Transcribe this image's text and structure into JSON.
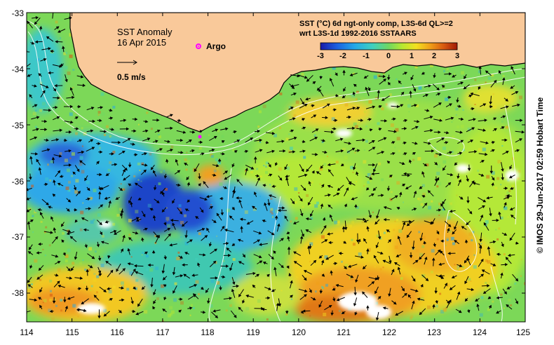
{
  "title_block": {
    "line1": "SST Anomaly",
    "line2": "16 Apr 2015"
  },
  "argo_legend": {
    "label": "Argo",
    "marker_color": "#ff00ff"
  },
  "velocity_scale": {
    "label": "0.5 m/s"
  },
  "product_info": {
    "line1": "SST (°C) 6d ngt-only comp, L3S-6d QL>=2",
    "line2": "wrt L3S-1d 1992-2016 SSTAARS"
  },
  "colorbar": {
    "ticks": [
      "-3",
      "-2",
      "-1",
      "0",
      "1",
      "2",
      "3"
    ],
    "range": [
      -3,
      3
    ],
    "colors": [
      "#1a1aa8",
      "#1c5fe0",
      "#23a8e8",
      "#3fd0c0",
      "#70d860",
      "#b8e830",
      "#f2e020",
      "#f0a018",
      "#d85a10",
      "#a01808"
    ]
  },
  "axes": {
    "longitude_labels": [
      "114",
      "115",
      "116",
      "117",
      "118",
      "119",
      "120",
      "121",
      "122",
      "123",
      "124",
      "125"
    ],
    "latitude_labels": [
      "-33",
      "-34",
      "-35",
      "-36",
      "-37",
      "-38"
    ],
    "lon_range": [
      114,
      125
    ],
    "lat_range": [
      -38.5,
      -33
    ]
  },
  "land_color": "#f9c99a",
  "credit": "©  IMOS 29-Jun-2017 02:59 Hobart Time"
}
